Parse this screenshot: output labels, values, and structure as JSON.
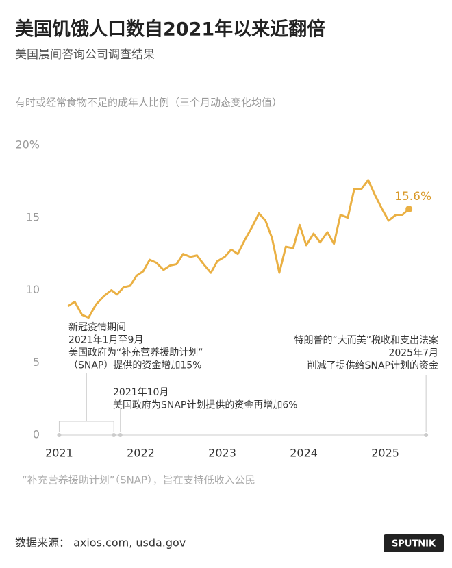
{
  "chart_data": {
    "type": "line",
    "title": "美国饥饿人口数自2021年以来近翻倍",
    "subtitle": "美国晨间咨询公司调查结果",
    "y_label": "有时或经常食物不足的成年人比例（三个月动态变化均值）",
    "x": [
      2021.11,
      2021.19,
      2021.28,
      2021.36,
      2021.45,
      2021.55,
      2021.64,
      2021.71,
      2021.79,
      2021.87,
      2021.95,
      2022.03,
      2022.11,
      2022.19,
      2022.28,
      2022.36,
      2022.44,
      2022.52,
      2022.61,
      2022.69,
      2022.77,
      2022.86,
      2022.94,
      2023.03,
      2023.11,
      2023.19,
      2023.28,
      2023.36,
      2023.45,
      2023.53,
      2023.61,
      2023.7,
      2023.78,
      2023.87,
      2023.95,
      2024.03,
      2024.12,
      2024.2,
      2024.29,
      2024.37,
      2024.45,
      2024.54,
      2024.62,
      2024.71,
      2024.79,
      2024.87,
      2024.96,
      2025.04,
      2025.13,
      2025.21,
      2025.29
    ],
    "series": [
      {
        "name": "成年人比例",
        "color": "#eab043",
        "values": [
          8.9,
          9.2,
          8.3,
          8.1,
          9.0,
          9.6,
          10.0,
          9.7,
          10.2,
          10.3,
          11.0,
          11.3,
          12.1,
          11.9,
          11.4,
          11.7,
          11.8,
          12.5,
          12.3,
          12.4,
          11.8,
          11.2,
          12.0,
          12.3,
          12.8,
          12.5,
          13.5,
          14.3,
          15.3,
          14.8,
          13.6,
          11.2,
          13.0,
          12.9,
          14.5,
          13.1,
          13.9,
          13.3,
          14.0,
          13.2,
          15.2,
          15.0,
          17.0,
          17.0,
          17.6,
          16.6,
          15.6,
          14.8,
          15.2,
          15.2,
          15.6
        ]
      }
    ],
    "end_label": "15.6%",
    "xlim": [
      2020.82,
      2025.65
    ],
    "xticks": [
      2021,
      2022,
      2023,
      2024,
      2025
    ],
    "ylim": [
      0,
      20
    ],
    "yticks": [
      0,
      5,
      10,
      15,
      {
        "value": 20,
        "label": "20%"
      }
    ],
    "annotations": [
      {
        "x": [
          2021.0,
          2021.67
        ],
        "lines": [
          "新冠疫情期间",
          "2021年1月至9月",
          "美国政府为“补充营养援助计划”",
          "（SNAP）提供的资金增加15%"
        ]
      },
      {
        "x": [
          2021.75
        ],
        "lines": [
          "2021年10月",
          "美国政府为SNAP计划提供的资金再增加6%"
        ]
      },
      {
        "x": [
          2025.5
        ],
        "lines": [
          "特朗普的“大而美”税收和支出法案",
          "2025年7月",
          "削减了提供给SNAP计划的资金"
        ]
      }
    ],
    "note": "“补充营养援助计划”（SNAP），旨在支持低收入公民",
    "source": "数据来源： axios.com, usda.gov",
    "logo": "SPUTNIK"
  }
}
